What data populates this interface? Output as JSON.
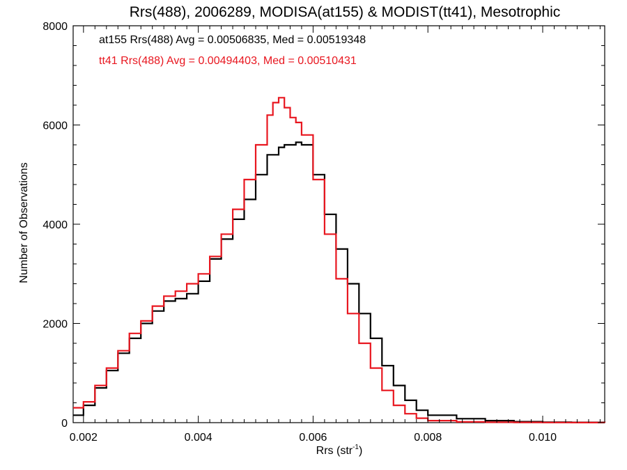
{
  "chart_data": {
    "type": "line",
    "title": "Rrs(488), 2006289, MODISA(at155) & MODIST(tt41), Mesotrophic",
    "xlabel": "Rrs (str",
    "xlabel_sup": "-1",
    "xlabel_end": ")",
    "ylabel": "Number of Observations",
    "xlim": [
      0.00182,
      0.01108
    ],
    "ylim": [
      0,
      8000
    ],
    "xticks": [
      0.002,
      0.004,
      0.006,
      0.008,
      0.01
    ],
    "xtick_labels": [
      "0.002",
      "0.004",
      "0.006",
      "0.008",
      "0.010"
    ],
    "yticks": [
      0,
      2000,
      4000,
      6000,
      8000
    ],
    "ytick_labels": [
      "0",
      "2000",
      "4000",
      "6000",
      "8000"
    ],
    "grid": false,
    "legend_position": "top-left",
    "series": [
      {
        "name": "at155 Rrs(488) Avg = 0.00506835, Med = 0.00519348",
        "color": "#000000",
        "x": [
          0.00182,
          0.002,
          0.0022,
          0.0024,
          0.0026,
          0.0028,
          0.003,
          0.0032,
          0.0034,
          0.0036,
          0.0038,
          0.004,
          0.0042,
          0.0044,
          0.0046,
          0.0048,
          0.005,
          0.0052,
          0.0054,
          0.0055,
          0.0056,
          0.0057,
          0.0058,
          0.006,
          0.0062,
          0.0064,
          0.0066,
          0.0068,
          0.007,
          0.0072,
          0.0074,
          0.0076,
          0.0078,
          0.008,
          0.0085,
          0.009,
          0.0095,
          0.01,
          0.0105,
          0.01108
        ],
        "values": [
          150,
          350,
          700,
          1050,
          1400,
          1700,
          2000,
          2250,
          2450,
          2500,
          2600,
          2850,
          3300,
          3700,
          4100,
          4500,
          5000,
          5400,
          5550,
          5600,
          5600,
          5650,
          5600,
          5000,
          4200,
          3500,
          2800,
          2200,
          1700,
          1150,
          750,
          450,
          250,
          150,
          80,
          40,
          20,
          10,
          5,
          0
        ]
      },
      {
        "name": "tt41 Rrs(488) Avg = 0.00494403, Med = 0.00510431",
        "color": "#e8161f",
        "x": [
          0.00182,
          0.002,
          0.0022,
          0.0024,
          0.0026,
          0.0028,
          0.003,
          0.0032,
          0.0034,
          0.0036,
          0.0038,
          0.004,
          0.0042,
          0.0044,
          0.0046,
          0.0048,
          0.005,
          0.0052,
          0.0053,
          0.0054,
          0.0055,
          0.0056,
          0.0057,
          0.0058,
          0.006,
          0.0062,
          0.0064,
          0.0066,
          0.0068,
          0.007,
          0.0072,
          0.0074,
          0.0076,
          0.0078,
          0.008,
          0.0085,
          0.009,
          0.0095,
          0.01,
          0.0105,
          0.01108
        ],
        "values": [
          300,
          420,
          750,
          1100,
          1450,
          1800,
          2050,
          2350,
          2550,
          2650,
          2800,
          3000,
          3350,
          3800,
          4300,
          4900,
          5600,
          6200,
          6450,
          6550,
          6350,
          6150,
          6050,
          5800,
          4900,
          3800,
          2900,
          2200,
          1600,
          1100,
          650,
          350,
          180,
          90,
          40,
          15,
          8,
          5,
          3,
          2,
          0
        ]
      }
    ]
  }
}
